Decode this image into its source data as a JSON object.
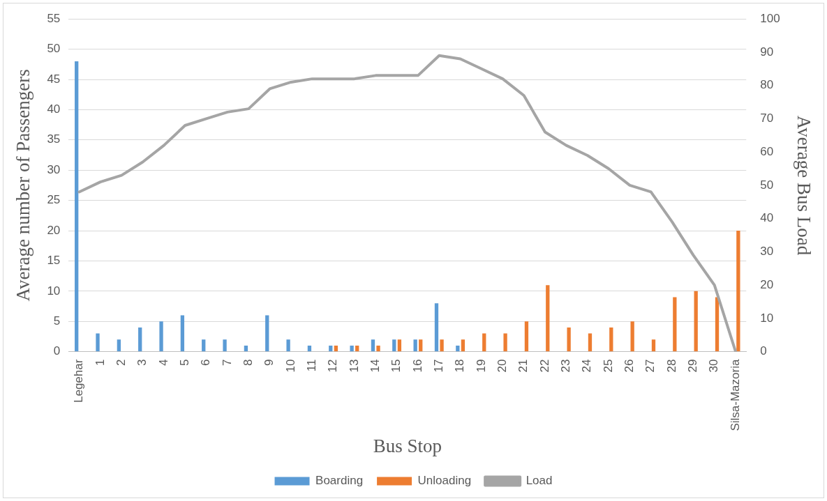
{
  "chart_data": {
    "type": "bar",
    "xlabel": "Bus Stop",
    "ylabel": "Average number of Passengers",
    "y2label": "Average Bus Load",
    "categories": [
      "Legehar",
      "1",
      "2",
      "3",
      "4",
      "5",
      "6",
      "7",
      "8",
      "9",
      "10",
      "11",
      "12",
      "13",
      "14",
      "15",
      "16",
      "17",
      "18",
      "19",
      "20",
      "21",
      "22",
      "23",
      "24",
      "25",
      "26",
      "27",
      "28",
      "29",
      "30",
      "Silsa-Mazoria"
    ],
    "series": [
      {
        "name": "Boarding",
        "color": "#5b9bd5",
        "values": [
          48,
          3,
          2,
          4,
          5,
          6,
          2,
          2,
          1,
          6,
          2,
          1,
          1,
          1,
          2,
          2,
          2,
          8,
          1,
          0,
          0,
          0,
          0,
          0,
          0,
          0,
          0,
          0,
          0,
          0,
          0,
          0
        ]
      },
      {
        "name": "Unloading",
        "color": "#ed7d31",
        "values": [
          0,
          0,
          0,
          0,
          0,
          0,
          0,
          0,
          0,
          0,
          0,
          0,
          1,
          1,
          1,
          2,
          2,
          2,
          2,
          3,
          3,
          5,
          11,
          4,
          3,
          4,
          5,
          2,
          9,
          10,
          9,
          20
        ]
      },
      {
        "name": "Load",
        "type": "line",
        "axis": "y2",
        "color": "#a5a5a5",
        "values": [
          48,
          51,
          53,
          57,
          62,
          68,
          70,
          72,
          73,
          79,
          81,
          82,
          82,
          82,
          83,
          83,
          83,
          89,
          88,
          85,
          82,
          77,
          66,
          62,
          59,
          55,
          50,
          48,
          39,
          29,
          20,
          0
        ]
      }
    ],
    "ylim": [
      0,
      55
    ],
    "yticks": [
      0,
      5,
      10,
      15,
      20,
      25,
      30,
      35,
      40,
      45,
      50,
      55
    ],
    "y2lim": [
      0,
      100
    ],
    "y2ticks": [
      0,
      10,
      20,
      30,
      40,
      50,
      60,
      70,
      80,
      90,
      100
    ],
    "grid": "y",
    "legend": "bottom",
    "marker": "none",
    "line_style": "solid"
  }
}
